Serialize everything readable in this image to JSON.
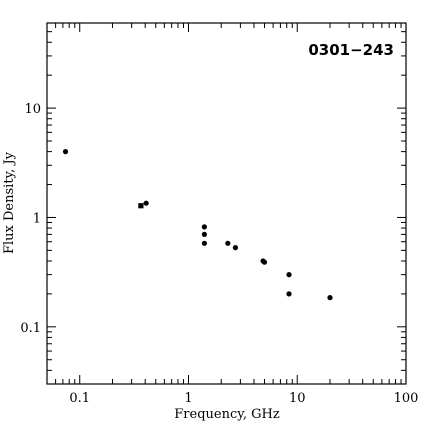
{
  "chart_data": {
    "type": "scatter",
    "title": "0301−243",
    "xlabel": "Frequency, GHz",
    "ylabel": "Flux Density, Jy",
    "x_scale": "log",
    "y_scale": "log",
    "xlim": [
      0.05,
      100
    ],
    "ylim": [
      0.03,
      60
    ],
    "grid": false,
    "legend": "none",
    "x_tick_labels": [
      {
        "value": 0.1,
        "label": "0.1"
      },
      {
        "value": 1,
        "label": "1"
      },
      {
        "value": 10,
        "label": "10"
      },
      {
        "value": 100,
        "label": "100"
      }
    ],
    "y_tick_labels": [
      {
        "value": 0.1,
        "label": "0.1"
      },
      {
        "value": 1,
        "label": "1"
      },
      {
        "value": 10,
        "label": "10"
      }
    ],
    "series": [
      {
        "marker": "circle",
        "points": [
          {
            "x": 0.074,
            "y": 4.0
          },
          {
            "x": 0.408,
            "y": 1.35
          },
          {
            "x": 1.4,
            "y": 0.82
          },
          {
            "x": 1.4,
            "y": 0.7
          },
          {
            "x": 1.4,
            "y": 0.58
          },
          {
            "x": 2.3,
            "y": 0.58
          },
          {
            "x": 2.7,
            "y": 0.53
          },
          {
            "x": 4.85,
            "y": 0.4
          },
          {
            "x": 5.0,
            "y": 0.39
          },
          {
            "x": 8.4,
            "y": 0.3
          },
          {
            "x": 8.4,
            "y": 0.2
          },
          {
            "x": 20.0,
            "y": 0.185
          }
        ]
      },
      {
        "marker": "square",
        "points": [
          {
            "x": 0.365,
            "y": 1.28
          }
        ]
      }
    ]
  }
}
